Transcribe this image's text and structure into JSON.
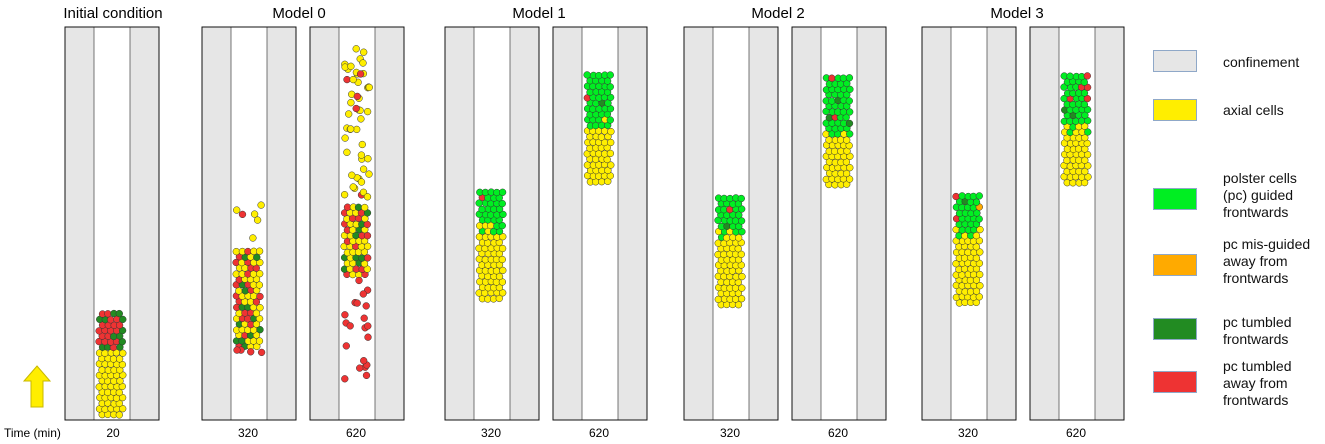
{
  "titles": {
    "initial": "Initial condition",
    "model0": "Model 0",
    "model1": "Model 1",
    "model2": "Model 2",
    "model3": "Model 3"
  },
  "time_axis_label": "Time (min)",
  "panels": [
    {
      "time": "20"
    },
    {
      "time": "320"
    },
    {
      "time": "620"
    },
    {
      "time": "320"
    },
    {
      "time": "620"
    },
    {
      "time": "320"
    },
    {
      "time": "620"
    },
    {
      "time": "320"
    },
    {
      "time": "620"
    }
  ],
  "legend": [
    {
      "label": "confinement",
      "color": "#e6e6e6",
      "border": "#8fa8c8"
    },
    {
      "label": "axial cells",
      "color": "#ffee00",
      "border": "#8fa8c8"
    },
    {
      "label": "polster cells\n(pc) guided\nfrontwards",
      "color": "#00ee22",
      "border": "#8fa8c8"
    },
    {
      "label": "pc mis-guided\naway from\nfrontwards",
      "color": "#ffaa00",
      "border": "#8fa8c8"
    },
    {
      "label": "pc tumbled\nfrontwards",
      "color": "#228b22",
      "border": "#8fa8c8"
    },
    {
      "label": "pc tumbled\naway from\nfrontwards",
      "color": "#ee3333",
      "border": "#8fa8c8"
    }
  ],
  "colors": {
    "confinement": "#e6e6e6",
    "axial": "#ffee00",
    "pc_guided": "#00ee22",
    "pc_misguided": "#ffaa00",
    "pc_tumbled_front": "#228b22",
    "pc_tumbled_away": "#ee3333",
    "arrow": "#ffee00"
  }
}
